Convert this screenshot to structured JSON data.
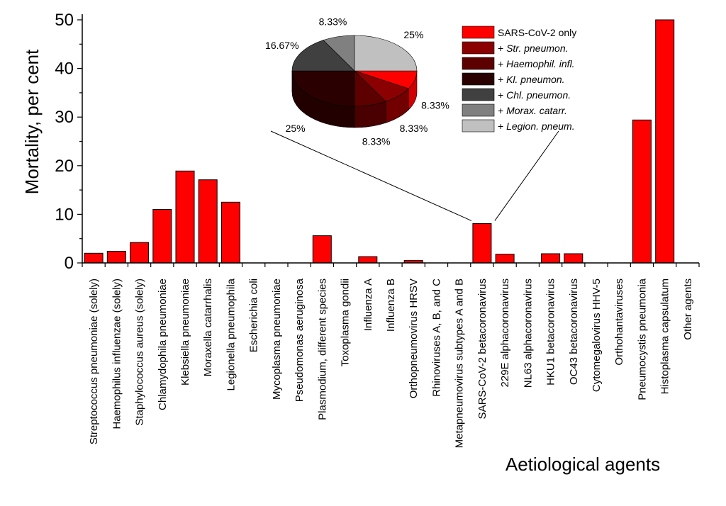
{
  "chart_data": [
    {
      "type": "bar",
      "xlabel": "Aetiological agents",
      "ylabel": "Mortality, per cent",
      "ylim": [
        0,
        50
      ],
      "yticks": [
        0,
        10,
        20,
        30,
        40,
        50
      ],
      "grid": false,
      "bar_color": "#ff0000",
      "categories": [
        "Streptococcus pneumoniae (solely)",
        "Haemophilus influenzae (solely)",
        "Staphylococcus aureus (solely)",
        "Chlamydophila pneumoniae",
        "Klebsiella pneumoniae",
        "Moraxella catarrhalis",
        "Legionella pneumophila",
        "Escherichia coli",
        "Mycoplasma pneumoniae",
        "Pseudomonas aeruginosa",
        "Plasmodium, different species",
        "Toxoplasma gondii",
        "Influenza A",
        "Influenza B",
        "Orthopneumovirus HRSV",
        "Rhinoviruses A, B, and C",
        "Metapneumovirus subtypes A and B",
        "SARS-CoV-2 betacoronavirus",
        "229E alphacoronavirus",
        "NL63 alphacoronavirus",
        "HKU1 betacoronavirus",
        "OC43 betacoronavirus",
        "Cytomegalovirus HHV-5",
        "Orthohantaviruses",
        "Pneumocystis pneumonia",
        "Histoplasma capsulatum",
        "Other agents"
      ],
      "values": [
        2.0,
        2.4,
        4.2,
        11.0,
        18.9,
        17.1,
        12.5,
        0,
        0,
        0,
        5.6,
        0,
        1.3,
        0,
        0.5,
        0,
        0,
        8.1,
        1.8,
        0,
        1.9,
        1.9,
        0,
        0,
        29.4,
        50.0,
        0
      ]
    },
    {
      "type": "pie",
      "style": "3d",
      "legend_placement": "top-right",
      "slices": [
        {
          "name": "SARS-CoV-2 only",
          "value": 8.33,
          "label": "8.33%",
          "color": "#ff0000"
        },
        {
          "name": "+ Str. pneumon.",
          "value": 8.33,
          "label": "8.33%",
          "color": "#8b0000"
        },
        {
          "name": "+ Haemophil. infl.",
          "value": 8.33,
          "label": "8.33%",
          "color": "#5c0000"
        },
        {
          "name": "+ Kl. pneumon.",
          "value": 25,
          "label": "25%",
          "color": "#2a0000"
        },
        {
          "name": "+ Chl. pneumon.",
          "value": 16.67,
          "label": "16.67%",
          "color": "#404040"
        },
        {
          "name": "+ Morax. catarr.",
          "value": 8.33,
          "label": "8.33%",
          "color": "#808080"
        },
        {
          "name": "+ Legion. pneum.",
          "value": 25,
          "label": "25%",
          "color": "#c0c0c0"
        }
      ],
      "legend_italic": [
        false,
        true,
        true,
        true,
        true,
        true,
        true
      ]
    }
  ]
}
